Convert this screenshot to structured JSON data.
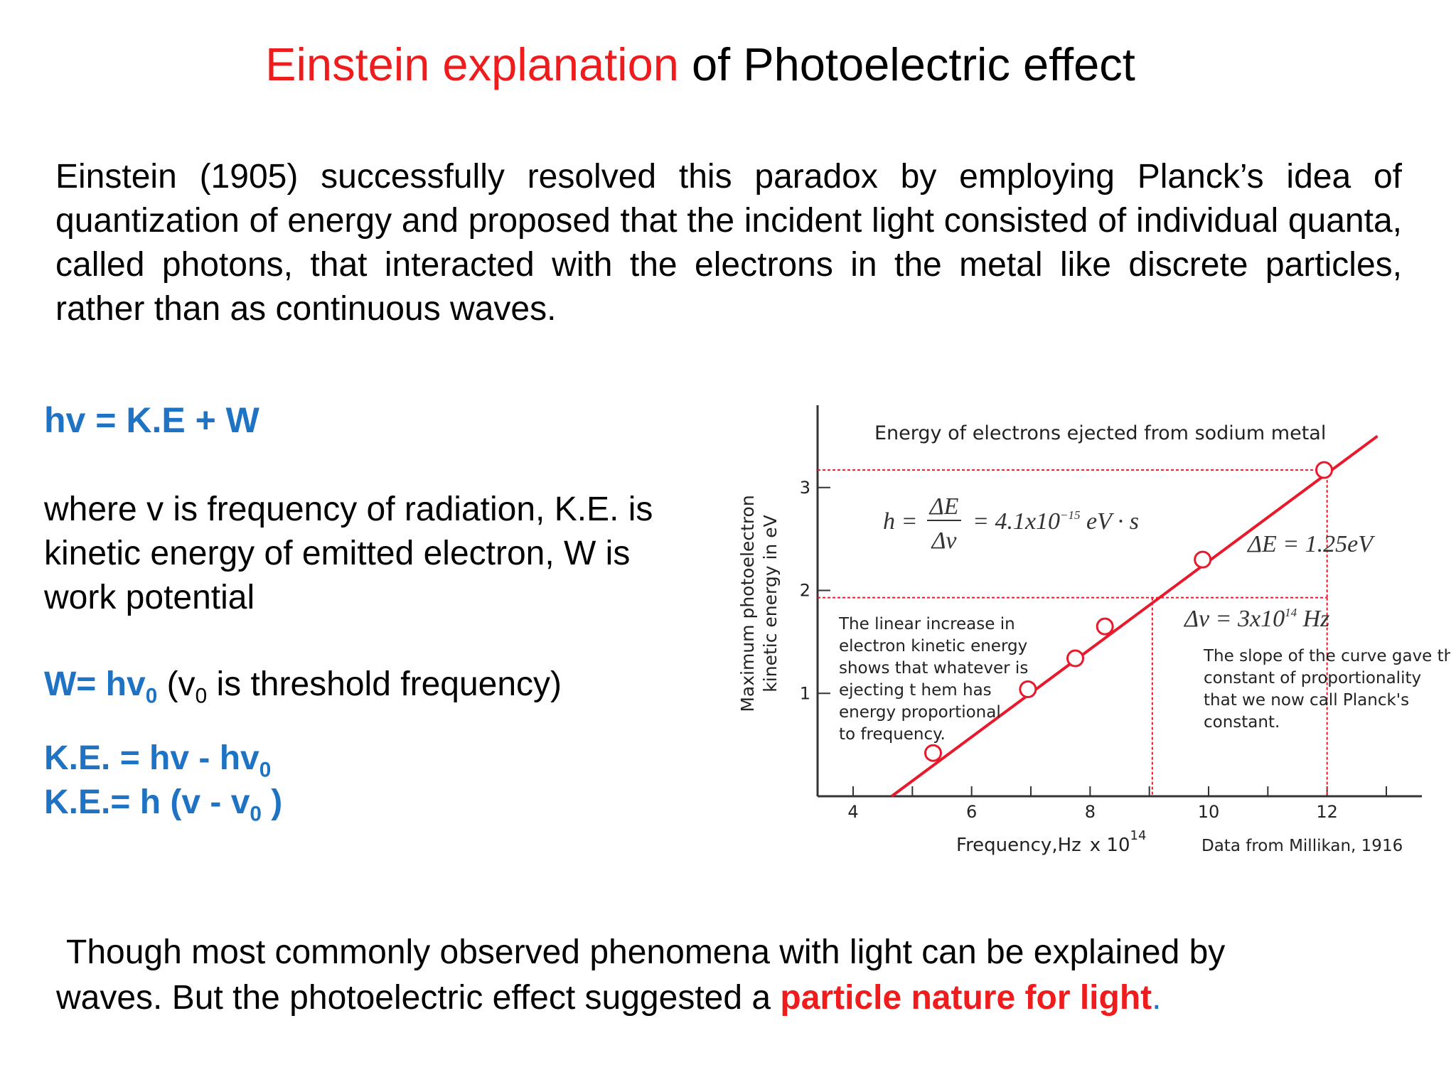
{
  "title": {
    "red": "Einstein explanation",
    "black": " of Photoelectric effect"
  },
  "intro": "Einstein (1905) successfully resolved this paradox by employing Planck’s idea of quantization of energy and proposed that the incident light consisted of individual quanta, called photons, that interacted with the electrons in the metal like discrete particles, rather than as continuous waves.",
  "equation_main": "hv = K.E + W",
  "where": {
    "line1": "where v  is frequency of radiation, K.E. is",
    "line2": "kinetic energy of emitted electron, W is",
    "line3": "work potential"
  },
  "work_eq": {
    "main": "W= hv",
    "sub": "0",
    "note_open": " (v",
    "note_sub": "0",
    "note_rest": "  is threshold frequency)"
  },
  "ke_eq1": {
    "main": "K.E. = hv - hv",
    "sub": "0"
  },
  "ke_eq2": {
    "main": "K.E.=  h (v - v",
    "sub": "0",
    "close": " )"
  },
  "chart_data": {
    "type": "scatter",
    "title": "Energy of electrons ejected from sodium metal",
    "xlabel": "Frequency,Hz",
    "xlabel_multiplier": "x 10",
    "xlabel_exp": "14",
    "ylabel_line1": "Maximum photoelectron",
    "ylabel_line2": "kinetic energy in eV",
    "x_ticks": [
      "4",
      "6",
      "8",
      "10",
      "12"
    ],
    "y_ticks": [
      "1",
      "2",
      "3"
    ],
    "xlim": [
      3.4,
      13.6
    ],
    "ylim": [
      0,
      3.8
    ],
    "points": [
      {
        "x": 5.35,
        "y": 0.42
      },
      {
        "x": 6.95,
        "y": 1.04
      },
      {
        "x": 7.75,
        "y": 1.34
      },
      {
        "x": 8.25,
        "y": 1.65
      },
      {
        "x": 9.9,
        "y": 2.3
      },
      {
        "x": 11.95,
        "y": 3.17
      }
    ],
    "fit_line": {
      "x": [
        4.65,
        12.85
      ],
      "y": [
        0.0,
        3.5
      ]
    },
    "ref_line_y": [
      3.17,
      1.93
    ],
    "ref_line_x": [
      9.05,
      12.0
    ],
    "formula": {
      "lhs": "h =",
      "num": "ΔE",
      "den": "Δv",
      "rhs": "= 4.1x10",
      "rhs_exp": "−15",
      "unit": " eV · s"
    },
    "delta_e": "ΔE = 1.25eV",
    "delta_v": {
      "main": "Δv = 3x10",
      "exp": "14",
      "unit": " Hz"
    },
    "note_left": [
      "The linear increase in",
      "electron kinetic energy",
      "shows that whatever is",
      "ejecting t hem has",
      "energy proportional",
      "to frequency."
    ],
    "note_right": [
      "The slope of the curve gave the",
      "constant of proportionality",
      "that we now call Planck's",
      "constant."
    ],
    "source": "Data from Millikan, 1916",
    "colors": {
      "line": "#e8192c",
      "axis": "#333333"
    }
  },
  "bottom": {
    "line1": "Though most commonly observed phenomena with light can be explained by",
    "line2_start": "waves. But the photoelectric effect suggested a ",
    "line2_red": "particle nature for light",
    "line2_end": "."
  }
}
